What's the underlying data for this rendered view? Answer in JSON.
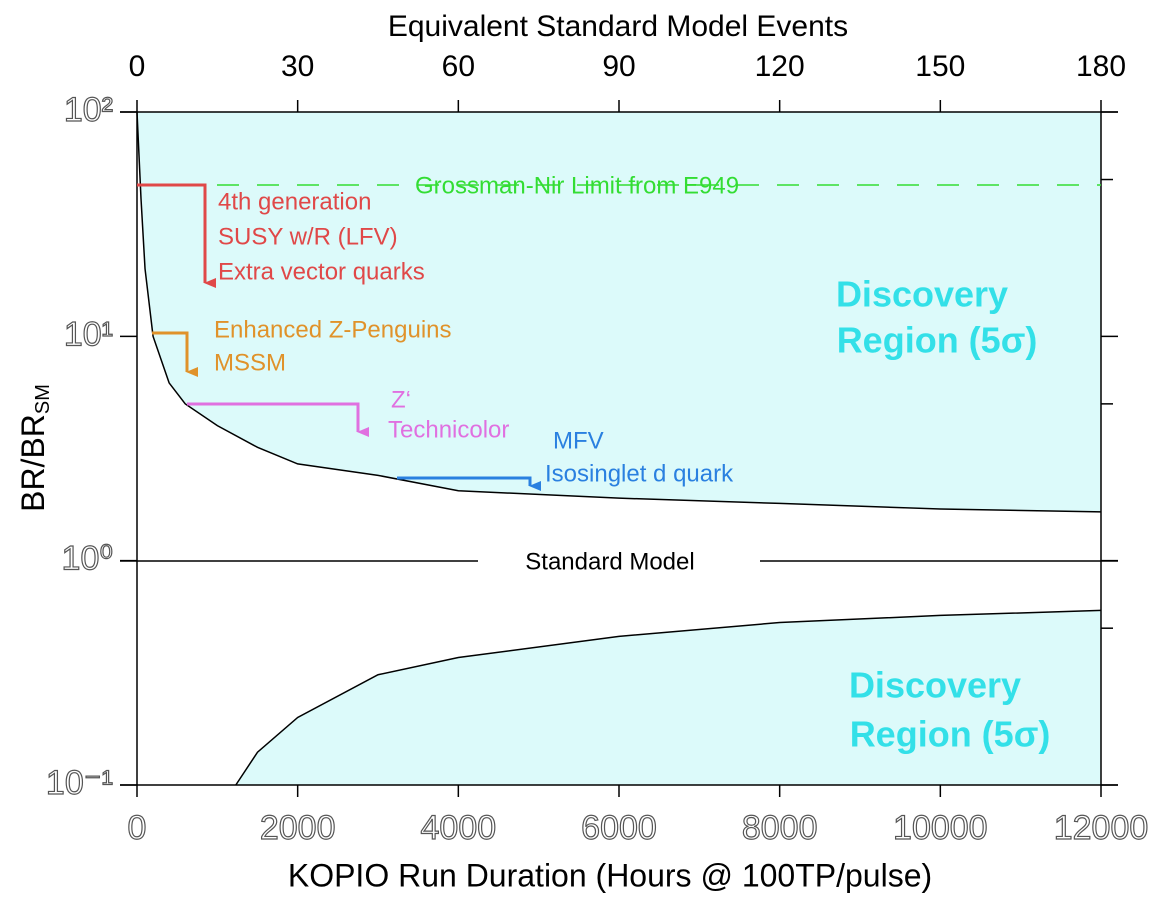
{
  "chart_data": {
    "type": "line",
    "title": "Equivalent Standard Model Events",
    "xlabel": "KOPIO Run Duration (Hours @ 100TP/pulse)",
    "ylabel": "BR/BR",
    "ylabel_sub": "SM",
    "log_y": true,
    "xlim": [
      0,
      12000
    ],
    "xticks": [
      0,
      2000,
      4000,
      6000,
      8000,
      10000,
      12000
    ],
    "x2lim": [
      0,
      180
    ],
    "x2ticks": [
      0,
      30,
      60,
      90,
      120,
      150,
      180
    ],
    "ylim": [
      0.1,
      100
    ],
    "yticks": [
      {
        "value": 0.1,
        "label": "10⁻¹"
      },
      {
        "value": 1,
        "label": "10⁰"
      },
      {
        "value": 10,
        "label": "10¹"
      },
      {
        "value": 100,
        "label": "10²"
      }
    ],
    "y_minor_ticks": [
      0.5,
      5,
      50
    ],
    "fill_color": "#dcfafa",
    "series": [
      {
        "x": [
          0,
          50,
          100,
          200,
          400,
          600,
          1000,
          1500,
          2000,
          3000,
          4000,
          6000,
          8000,
          10000,
          12000
        ],
        "values": [
          100,
          41,
          20,
          10,
          6.2,
          5.0,
          4.0,
          3.2,
          2.7,
          2.4,
          2.05,
          1.9,
          1.8,
          1.7,
          1.65
        ],
        "color": "#000000",
        "fill_to": "top"
      },
      {
        "x": [
          1230,
          1500,
          2000,
          3000,
          4000,
          6000,
          8000,
          10000,
          12000
        ],
        "values": [
          0.1,
          0.14,
          0.2,
          0.31,
          0.37,
          0.46,
          0.53,
          0.57,
          0.6
        ],
        "color": "#000000",
        "fill_to": "bottom"
      }
    ],
    "reference_label": "Standard Model",
    "limit_label": "Grossman-Nir Limit from E949",
    "region_upper": [
      "Discovery",
      "Region (5σ)"
    ],
    "region_lower": [
      "Discovery",
      "Region (5σ)"
    ],
    "models": {
      "red": [
        "4th generation",
        "SUSY w/R (LFV)",
        "Extra vector quarks"
      ],
      "orange": [
        "Enhanced Z-Penguins",
        "MSSM"
      ],
      "magenta": [
        "Z‘",
        "Technicolor"
      ],
      "blue": [
        "MFV",
        "Isosinglet d quark"
      ]
    }
  }
}
